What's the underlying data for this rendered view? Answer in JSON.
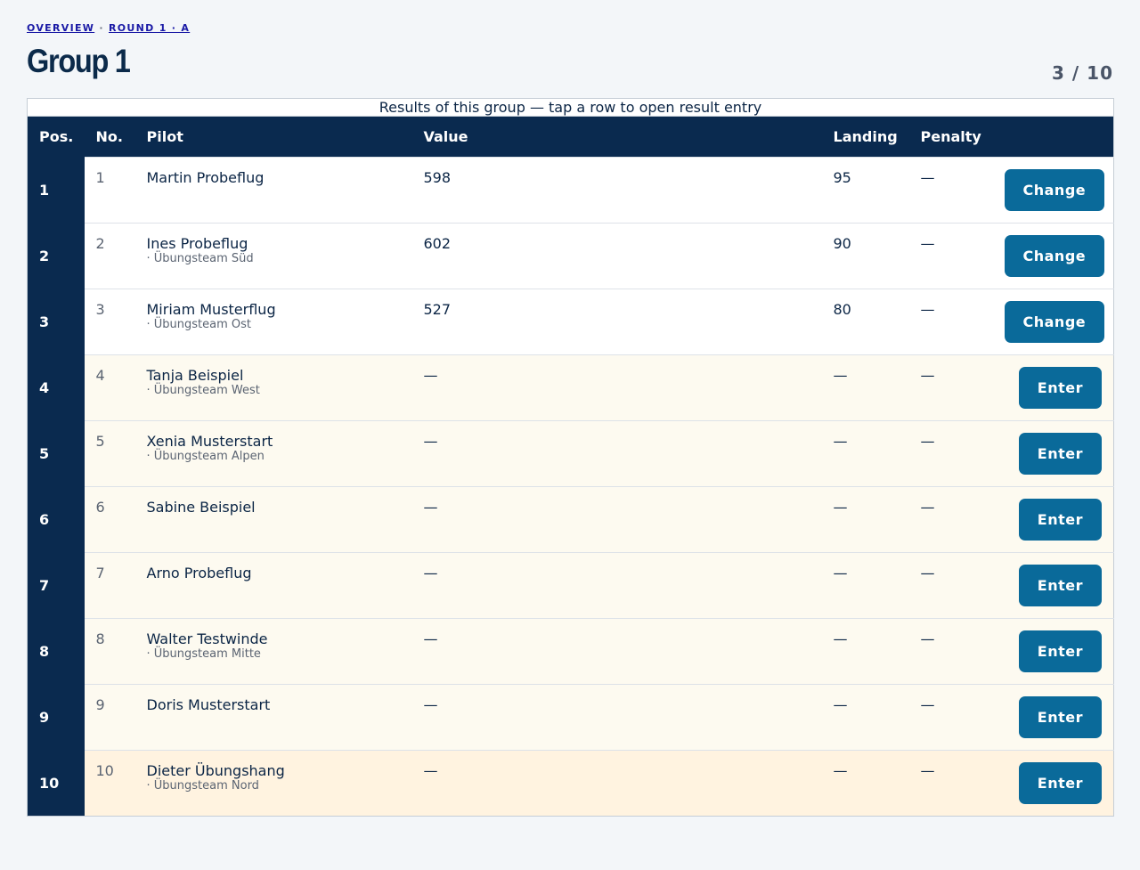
{
  "header": {
    "breadcrumb": [
      "OVERVIEW",
      "·",
      "ROUND 1 · A"
    ],
    "title": "Group 1",
    "counter": "3 / 10"
  },
  "table": {
    "caption": "Results of this group — tap a row to open result entry",
    "columns": [
      "Pos.",
      "No.",
      "Pilot",
      "Value",
      "Landing",
      "Penalty"
    ],
    "rows": [
      {
        "pos": "1",
        "no": "1",
        "pilot": "Martin Probeflug",
        "value": "598",
        "landing": "95",
        "penalty": "—",
        "action": "Change"
      },
      {
        "pos": "2",
        "no": "2",
        "pilot": "Ines Probeflug",
        "team": "· Übungsteam Süd",
        "value": "602",
        "landing": "90",
        "penalty": "—",
        "action": "Change"
      },
      {
        "pos": "3",
        "no": "3",
        "pilot": "Miriam Musterflug",
        "team": "· Übungsteam Ost",
        "value": "527",
        "landing": "80",
        "penalty": "—",
        "action": "Change"
      },
      {
        "pos": "4",
        "no": "4",
        "pilot": "Tanja Beispiel",
        "team": "· Übungsteam West",
        "value": "—",
        "landing": "—",
        "penalty": "—",
        "action": "Enter"
      },
      {
        "pos": "5",
        "no": "5",
        "pilot": "Xenia Musterstart",
        "team": "· Übungsteam Alpen",
        "value": "—",
        "landing": "—",
        "penalty": "—",
        "action": "Enter"
      },
      {
        "pos": "6",
        "no": "6",
        "pilot": "Sabine Beispiel",
        "value": "—",
        "landing": "—",
        "penalty": "—",
        "action": "Enter"
      },
      {
        "pos": "7",
        "no": "7",
        "pilot": "Arno Probeflug",
        "value": "—",
        "landing": "—",
        "penalty": "—",
        "action": "Enter"
      },
      {
        "pos": "8",
        "no": "8",
        "pilot": "Walter Testwinde",
        "team": "· Übungsteam Mitte",
        "value": "—",
        "landing": "—",
        "penalty": "—",
        "action": "Enter"
      },
      {
        "pos": "9",
        "no": "9",
        "pilot": "Doris Musterstart",
        "value": "—",
        "landing": "—",
        "penalty": "—",
        "action": "Enter"
      },
      {
        "pos": "10",
        "no": "10",
        "pilot": "Dieter Übungshang",
        "team": "· Übungsteam Nord",
        "value": "—",
        "landing": "—",
        "penalty": "—",
        "action": "Enter"
      }
    ]
  }
}
